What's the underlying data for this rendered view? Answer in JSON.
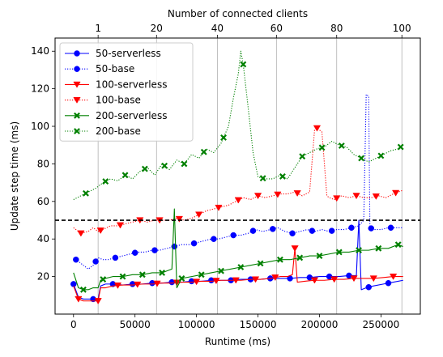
{
  "chart_data": {
    "type": "line",
    "xlabel": "Runtime (ms)",
    "ylabel": "Update step time (ms)",
    "top_xlabel": "Number of connected clients",
    "xlim": [
      -15000,
      282000
    ],
    "ylim": [
      0,
      147
    ],
    "x_ticks": [
      0,
      50000,
      100000,
      150000,
      200000,
      250000
    ],
    "x_tick_labels": [
      "0",
      "50000",
      "100000",
      "150000",
      "200000",
      "250000"
    ],
    "y_ticks": [
      20,
      40,
      60,
      80,
      100,
      120,
      140
    ],
    "y_tick_labels": [
      "20",
      "40",
      "60",
      "80",
      "100",
      "120",
      "140"
    ],
    "top_ticks": [
      20000,
      67500,
      117000,
      165000,
      214000,
      267000
    ],
    "top_tick_labels": [
      "1",
      "20",
      "40",
      "60",
      "80",
      "100"
    ],
    "grid": "vertical at top ticks",
    "threshold_line": {
      "y": 50,
      "style": "dashed",
      "color": "#000000"
    },
    "legend_position": "top-left",
    "series": [
      {
        "name": "50-serverless",
        "color": "#0000ff",
        "linestyle": "solid",
        "marker": "circle",
        "x": [
          0,
          4000,
          8000,
          12000,
          16000,
          20000,
          22000,
          26000,
          32000,
          40000,
          48000,
          56000,
          64000,
          72000,
          80000,
          88000,
          96000,
          104000,
          112000,
          120000,
          128000,
          136000,
          144000,
          152000,
          160000,
          168000,
          176000,
          184000,
          192000,
          200000,
          208000,
          216000,
          224000,
          230000,
          232000,
          234000,
          238000,
          244000,
          252000,
          260000,
          268000
        ],
        "y": [
          16,
          9,
          8,
          8,
          8,
          8,
          15,
          16,
          16,
          15.5,
          16,
          16,
          16.5,
          16.5,
          17,
          17,
          17.5,
          17.5,
          18,
          18,
          18,
          18.5,
          18.5,
          18.5,
          19,
          19,
          19,
          19.5,
          19.5,
          20,
          20,
          20,
          20.5,
          20.5,
          50,
          13,
          14,
          15,
          16,
          17,
          18
        ]
      },
      {
        "name": "50-base",
        "color": "#0000ff",
        "linestyle": "dotted",
        "marker": "circle",
        "x": [
          0,
          6000,
          12000,
          16000,
          20000,
          24000,
          28000,
          34000,
          40000,
          46000,
          52000,
          58000,
          64000,
          70000,
          76000,
          82000,
          88000,
          94000,
          100000,
          106000,
          112000,
          118000,
          124000,
          130000,
          136000,
          142000,
          148000,
          154000,
          160000,
          166000,
          172000,
          178000,
          184000,
          190000,
          196000,
          202000,
          208000,
          214000,
          220000,
          226000,
          232000,
          236000,
          238000,
          240000,
          241000,
          244000,
          250000,
          256000,
          262000,
          268000
        ],
        "y": [
          30,
          27,
          24,
          26,
          30,
          29,
          29,
          30,
          31,
          32,
          33,
          33,
          34,
          34,
          35,
          36,
          37,
          37,
          38,
          39,
          40,
          40,
          41,
          42,
          42,
          43,
          45,
          44,
          45,
          46,
          44,
          43,
          44,
          45,
          44,
          45,
          44,
          45,
          45,
          46,
          47,
          50,
          117,
          116,
          46,
          45,
          45,
          46,
          46,
          46
        ]
      },
      {
        "name": "100-serverless",
        "color": "#ff0000",
        "linestyle": "solid",
        "marker": "triangle",
        "x": [
          0,
          4000,
          8000,
          12000,
          16000,
          20000,
          22000,
          26000,
          32000,
          40000,
          48000,
          56000,
          64000,
          72000,
          80000,
          88000,
          96000,
          104000,
          112000,
          120000,
          128000,
          136000,
          144000,
          152000,
          160000,
          168000,
          174000,
          178000,
          180000,
          182000,
          188000,
          196000,
          204000,
          212000,
          220000,
          228000,
          236000,
          244000,
          252000,
          260000,
          268000
        ],
        "y": [
          15,
          8,
          7,
          7,
          7,
          7,
          14,
          14,
          15,
          15.5,
          15.5,
          16,
          16,
          16.5,
          16.5,
          17,
          17,
          17.5,
          17.5,
          18,
          18,
          18,
          18.5,
          18.5,
          19,
          20,
          20,
          21,
          35,
          17,
          17.5,
          18,
          18,
          18.5,
          18.5,
          19,
          19,
          19,
          19.5,
          20,
          20
        ]
      },
      {
        "name": "100-base",
        "color": "#ff0000",
        "linestyle": "dotted",
        "marker": "triangle",
        "x": [
          0,
          6000,
          12000,
          16000,
          20000,
          24000,
          30000,
          36000,
          42000,
          48000,
          54000,
          60000,
          66000,
          72000,
          78000,
          84000,
          90000,
          96000,
          102000,
          108000,
          114000,
          120000,
          126000,
          132000,
          138000,
          144000,
          150000,
          156000,
          162000,
          168000,
          174000,
          180000,
          186000,
          192000,
          196000,
          198000,
          202000,
          206000,
          208000,
          212000,
          218000,
          224000,
          230000,
          236000,
          242000,
          248000,
          254000,
          260000,
          268000
        ],
        "y": [
          46,
          43,
          44,
          46,
          44,
          45,
          47,
          47,
          48,
          49,
          50,
          49,
          50,
          50,
          50,
          51,
          50,
          51,
          53,
          55,
          56,
          57,
          58,
          60,
          62,
          61,
          63,
          62,
          63,
          64,
          64,
          65,
          63,
          65,
          98,
          99,
          97,
          63,
          62,
          61,
          63,
          62,
          63,
          62,
          62,
          63,
          62,
          64,
          66
        ]
      },
      {
        "name": "200-serverless",
        "color": "#008000",
        "linestyle": "solid",
        "marker": "x",
        "x": [
          0,
          4000,
          8000,
          12000,
          16000,
          20000,
          22000,
          26000,
          32000,
          40000,
          48000,
          56000,
          64000,
          72000,
          76000,
          80000,
          82000,
          84000,
          88000,
          96000,
          104000,
          112000,
          120000,
          128000,
          136000,
          144000,
          152000,
          160000,
          168000,
          176000,
          184000,
          192000,
          200000,
          208000,
          216000,
          224000,
          232000,
          240000,
          248000,
          256000,
          264000,
          268000
        ],
        "y": [
          22,
          14,
          13,
          13,
          14,
          14,
          18,
          19,
          20,
          20,
          21,
          21,
          22,
          22,
          23,
          24,
          56,
          14,
          19,
          20,
          21,
          22,
          23,
          24,
          25,
          26,
          27,
          28,
          29,
          29,
          30,
          31,
          31,
          32,
          33,
          33,
          34,
          34,
          35,
          35,
          37,
          36
        ]
      },
      {
        "name": "200-base",
        "color": "#008000",
        "linestyle": "dotted",
        "marker": "x",
        "x": [
          0,
          6000,
          12000,
          18000,
          24000,
          30000,
          36000,
          42000,
          48000,
          54000,
          60000,
          66000,
          72000,
          78000,
          84000,
          90000,
          96000,
          102000,
          108000,
          114000,
          120000,
          126000,
          130000,
          134000,
          136000,
          138000,
          142000,
          146000,
          150000,
          156000,
          162000,
          168000,
          174000,
          180000,
          186000,
          192000,
          198000,
          204000,
          210000,
          216000,
          222000,
          228000,
          234000,
          240000,
          246000,
          252000,
          258000,
          264000,
          268000
        ],
        "y": [
          61,
          63,
          65,
          67,
          70,
          72,
          71,
          74,
          72,
          76,
          78,
          74,
          80,
          77,
          82,
          80,
          85,
          83,
          88,
          86,
          91,
          100,
          115,
          128,
          140,
          133,
          110,
          86,
          73,
          72,
          72,
          74,
          72,
          78,
          84,
          86,
          88,
          89,
          92,
          90,
          89,
          85,
          83,
          81,
          83,
          85,
          87,
          88,
          90
        ]
      }
    ],
    "marker_every": 8
  }
}
